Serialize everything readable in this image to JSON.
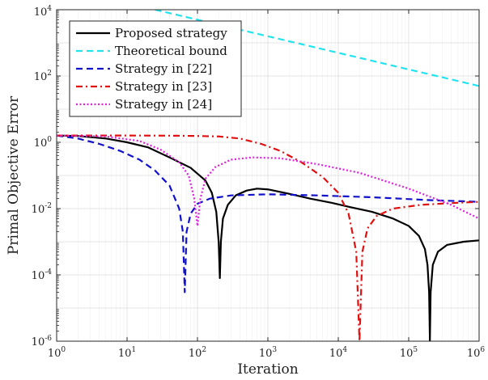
{
  "chart_data": {
    "type": "line",
    "xlabel": "Iteration",
    "ylabel": "Primal Objective Error",
    "xscale": "log",
    "yscale": "log",
    "xlim": [
      1,
      1000000
    ],
    "ylim": [
      1e-06,
      10000
    ],
    "grid": true,
    "legend_position": "top-left",
    "x_ticks": [
      {
        "base": "10",
        "exp": "0",
        "value": 1
      },
      {
        "base": "10",
        "exp": "1",
        "value": 10
      },
      {
        "base": "10",
        "exp": "2",
        "value": 100
      },
      {
        "base": "10",
        "exp": "3",
        "value": 1000
      },
      {
        "base": "10",
        "exp": "4",
        "value": 10000
      },
      {
        "base": "10",
        "exp": "5",
        "value": 100000
      },
      {
        "base": "10",
        "exp": "6",
        "value": 1000000
      }
    ],
    "y_ticks": [
      {
        "base": "10",
        "exp": "4",
        "value": 10000
      },
      {
        "base": "10",
        "exp": "2",
        "value": 100
      },
      {
        "base": "10",
        "exp": "0",
        "value": 1
      },
      {
        "base": "10",
        "exp": "-2",
        "value": 0.01
      },
      {
        "base": "10",
        "exp": "-4",
        "value": 0.0001
      },
      {
        "base": "10",
        "exp": "-6",
        "value": 1e-06
      }
    ],
    "series": [
      {
        "name": "Proposed strategy",
        "color": "#000000",
        "style": "solid",
        "points": [
          [
            1,
            1.6
          ],
          [
            2,
            1.55
          ],
          [
            5,
            1.3
          ],
          [
            10,
            1.0
          ],
          [
            20,
            0.7
          ],
          [
            40,
            0.35
          ],
          [
            80,
            0.17
          ],
          [
            130,
            0.07
          ],
          [
            160,
            0.03
          ],
          [
            185,
            0.008
          ],
          [
            200,
            0.001
          ],
          [
            208,
            8e-05
          ],
          [
            215,
            0.001
          ],
          [
            230,
            0.005
          ],
          [
            270,
            0.013
          ],
          [
            350,
            0.025
          ],
          [
            500,
            0.035
          ],
          [
            700,
            0.04
          ],
          [
            1000,
            0.038
          ],
          [
            2000,
            0.028
          ],
          [
            4000,
            0.02
          ],
          [
            8000,
            0.015
          ],
          [
            15000,
            0.011
          ],
          [
            30000,
            0.008
          ],
          [
            60000,
            0.005
          ],
          [
            100000,
            0.003
          ],
          [
            140000,
            0.0015
          ],
          [
            170000,
            0.0006
          ],
          [
            185000,
            0.0002
          ],
          [
            195000,
            3e-05
          ],
          [
            200000,
            1e-06
          ],
          [
            205000,
            3e-05
          ],
          [
            220000,
            0.0002
          ],
          [
            260000,
            0.0005
          ],
          [
            350000,
            0.0008
          ],
          [
            600000,
            0.001
          ],
          [
            1000000,
            0.0011
          ]
        ]
      },
      {
        "name": "Theoretical bound",
        "color": "#22e3ee",
        "style": "dashed",
        "points": [
          [
            25,
            10000
          ],
          [
            1000000,
            50
          ]
        ]
      },
      {
        "name": "Strategy in [22]",
        "color": "#1111cc",
        "style": "dashed",
        "points": [
          [
            1,
            1.6
          ],
          [
            2,
            1.3
          ],
          [
            4,
            0.9
          ],
          [
            8,
            0.55
          ],
          [
            15,
            0.3
          ],
          [
            25,
            0.14
          ],
          [
            40,
            0.05
          ],
          [
            55,
            0.01
          ],
          [
            62,
            0.002
          ],
          [
            66,
            3e-05
          ],
          [
            70,
            0.002
          ],
          [
            80,
            0.007
          ],
          [
            100,
            0.014
          ],
          [
            150,
            0.02
          ],
          [
            300,
            0.025
          ],
          [
            1000,
            0.027
          ],
          [
            5000,
            0.025
          ],
          [
            30000,
            0.022
          ],
          [
            200000,
            0.018
          ],
          [
            1000000,
            0.016
          ]
        ]
      },
      {
        "name": "Strategy in [23]",
        "color": "#e01010",
        "style": "dashdot",
        "points": [
          [
            1,
            1.6
          ],
          [
            10,
            1.6
          ],
          [
            50,
            1.58
          ],
          [
            100,
            1.55
          ],
          [
            200,
            1.5
          ],
          [
            400,
            1.3
          ],
          [
            800,
            0.9
          ],
          [
            1500,
            0.55
          ],
          [
            3000,
            0.25
          ],
          [
            6000,
            0.09
          ],
          [
            10000,
            0.03
          ],
          [
            14000,
            0.007
          ],
          [
            18000,
            0.0005
          ],
          [
            20000,
            1e-06
          ],
          [
            22000,
            0.0005
          ],
          [
            26000,
            0.0025
          ],
          [
            35000,
            0.006
          ],
          [
            60000,
            0.01
          ],
          [
            150000,
            0.013
          ],
          [
            500000,
            0.015
          ],
          [
            1000000,
            0.016
          ]
        ]
      },
      {
        "name": "Strategy in [24]",
        "color": "#e020e0",
        "style": "dotted",
        "points": [
          [
            1,
            1.6
          ],
          [
            5,
            1.5
          ],
          [
            15,
            1.1
          ],
          [
            30,
            0.6
          ],
          [
            55,
            0.25
          ],
          [
            75,
            0.1
          ],
          [
            90,
            0.02
          ],
          [
            100,
            0.003
          ],
          [
            110,
            0.02
          ],
          [
            130,
            0.08
          ],
          [
            180,
            0.18
          ],
          [
            300,
            0.3
          ],
          [
            600,
            0.35
          ],
          [
            1500,
            0.33
          ],
          [
            5000,
            0.22
          ],
          [
            20000,
            0.12
          ],
          [
            100000,
            0.04
          ],
          [
            400000,
            0.013
          ],
          [
            1000000,
            0.005
          ]
        ]
      }
    ]
  }
}
